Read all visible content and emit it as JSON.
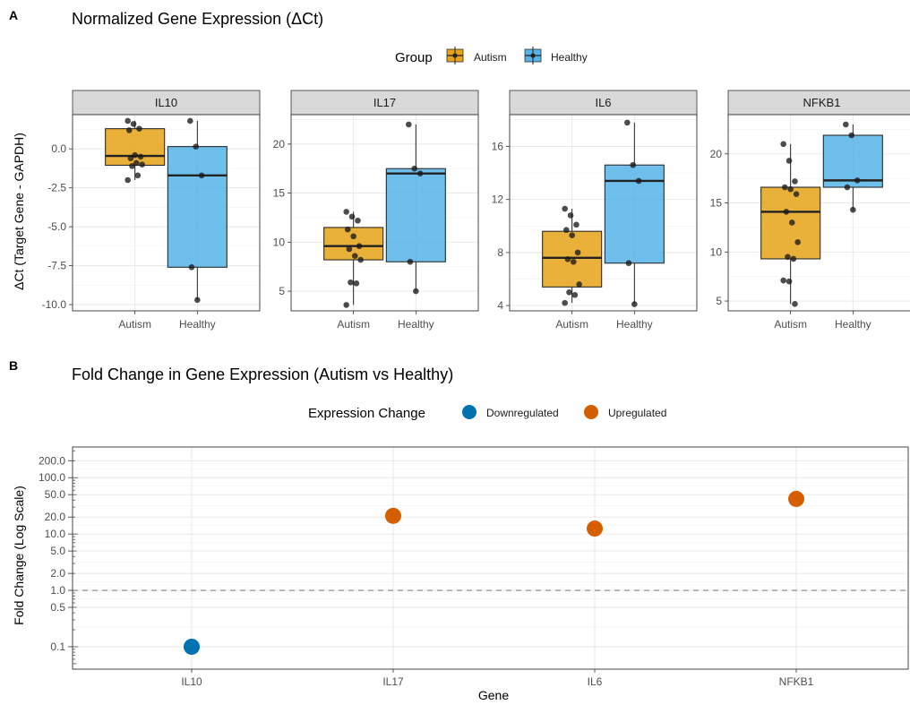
{
  "panel_a": {
    "tag": "A",
    "title": "Normalized Gene Expression (ΔCt)",
    "legend": {
      "title": "Group",
      "items": [
        {
          "label": "Autism",
          "color": "#E6A317"
        },
        {
          "label": "Healthy",
          "color": "#56B4E9"
        }
      ]
    },
    "ylabel": "ΔCt (Target Gene - GAPDH)"
  },
  "panel_b": {
    "tag": "B",
    "title": "Fold Change in Gene Expression (Autism vs Healthy)",
    "legend": {
      "title": "Expression Change",
      "items": [
        {
          "label": "Downregulated",
          "color": "#0072B2"
        },
        {
          "label": "Upregulated",
          "color": "#D55E00"
        }
      ]
    },
    "xlabel": "Gene",
    "ylabel": "Fold Change (Log Scale)"
  },
  "chart_data": [
    {
      "type": "box",
      "title": "Normalized Gene Expression (ΔCt)",
      "ylabel": "ΔCt (Target Gene - GAPDH)",
      "categories": [
        "Autism",
        "Healthy"
      ],
      "facets": [
        {
          "name": "IL10",
          "ylim": [
            -10.4,
            2.2
          ],
          "yticks": [
            -10.0,
            -7.5,
            -5.0,
            -2.5,
            0.0
          ],
          "tick_labels": [
            "-10.0",
            "-7.5",
            "-5.0",
            "-2.5",
            "0.0"
          ],
          "boxes": [
            {
              "group": "Autism",
              "min": -2.0,
              "q1": -1.05,
              "median": -0.45,
              "q3": 1.3,
              "max": 1.8,
              "points": [
                1.8,
                1.6,
                1.3,
                1.2,
                -0.4,
                -0.5,
                -0.6,
                -0.9,
                -1.0,
                -1.1,
                -1.7,
                -2.0
              ]
            },
            {
              "group": "Healthy",
              "min": -9.7,
              "q1": -7.6,
              "median": -1.7,
              "q3": 0.15,
              "max": 1.8,
              "points": [
                1.8,
                0.15,
                -1.7,
                -7.6,
                -9.7
              ]
            }
          ]
        },
        {
          "name": "IL17",
          "ylim": [
            3.0,
            23.0
          ],
          "yticks": [
            5,
            10,
            15,
            20
          ],
          "tick_labels": [
            "5",
            "10",
            "15",
            "20"
          ],
          "boxes": [
            {
              "group": "Autism",
              "min": 3.6,
              "q1": 8.2,
              "median": 9.6,
              "q3": 11.5,
              "max": 13.1,
              "points": [
                13.1,
                12.6,
                12.2,
                11.3,
                10.6,
                9.6,
                9.3,
                8.6,
                8.2,
                5.9,
                5.8,
                3.6
              ]
            },
            {
              "group": "Healthy",
              "min": 5.0,
              "q1": 8.0,
              "median": 17.0,
              "q3": 17.5,
              "max": 22.0,
              "points": [
                22.0,
                17.5,
                17.0,
                8.0,
                5.0
              ]
            }
          ]
        },
        {
          "name": "IL6",
          "ylim": [
            3.6,
            18.4
          ],
          "yticks": [
            4,
            8,
            12,
            16
          ],
          "tick_labels": [
            "4",
            "8",
            "12",
            "16"
          ],
          "boxes": [
            {
              "group": "Autism",
              "min": 4.2,
              "q1": 5.4,
              "median": 7.6,
              "q3": 9.6,
              "max": 11.3,
              "points": [
                11.3,
                10.8,
                10.1,
                9.7,
                9.3,
                8.0,
                7.5,
                7.3,
                5.6,
                5.0,
                4.8,
                4.2
              ]
            },
            {
              "group": "Healthy",
              "min": 4.1,
              "q1": 7.2,
              "median": 13.4,
              "q3": 14.6,
              "max": 17.8,
              "points": [
                17.8,
                14.6,
                13.4,
                7.2,
                4.1
              ]
            }
          ]
        },
        {
          "name": "NFKB1",
          "ylim": [
            4.0,
            24.0
          ],
          "yticks": [
            5,
            10,
            15,
            20
          ],
          "tick_labels": [
            "5",
            "10",
            "15",
            "20"
          ],
          "boxes": [
            {
              "group": "Autism",
              "min": 4.7,
              "q1": 9.3,
              "median": 14.1,
              "q3": 16.6,
              "max": 21.0,
              "points": [
                21.0,
                19.3,
                17.2,
                16.6,
                16.4,
                15.9,
                14.1,
                13.0,
                11.0,
                9.5,
                9.3,
                7.1,
                7.0,
                4.7
              ]
            },
            {
              "group": "Healthy",
              "min": 14.3,
              "q1": 16.6,
              "median": 17.3,
              "q3": 21.9,
              "max": 23.0,
              "points": [
                23.0,
                21.9,
                17.3,
                16.6,
                14.3
              ]
            }
          ]
        }
      ]
    },
    {
      "type": "scatter",
      "title": "Fold Change in Gene Expression (Autism vs Healthy)",
      "xlabel": "Gene",
      "ylabel": "Fold Change (Log Scale)",
      "log_y": true,
      "ylim": [
        0.04,
        350
      ],
      "categories": [
        "IL10",
        "IL17",
        "IL6",
        "NFKB1"
      ],
      "yticks": [
        0.1,
        0.5,
        1.0,
        2.0,
        5.0,
        10.0,
        20.0,
        50.0,
        100.0,
        200.0
      ],
      "tick_labels": [
        "0.1",
        "0.5",
        "1.0",
        "2.0",
        "5.0",
        "10.0",
        "20.0",
        "50.0",
        "100.0",
        "200.0"
      ],
      "reference_line": 1.0,
      "points": [
        {
          "gene": "IL10",
          "value": 0.1,
          "change": "Downregulated"
        },
        {
          "gene": "IL17",
          "value": 21,
          "change": "Upregulated"
        },
        {
          "gene": "IL6",
          "value": 12.5,
          "change": "Upregulated"
        },
        {
          "gene": "NFKB1",
          "value": 42,
          "change": "Upregulated"
        }
      ]
    }
  ]
}
